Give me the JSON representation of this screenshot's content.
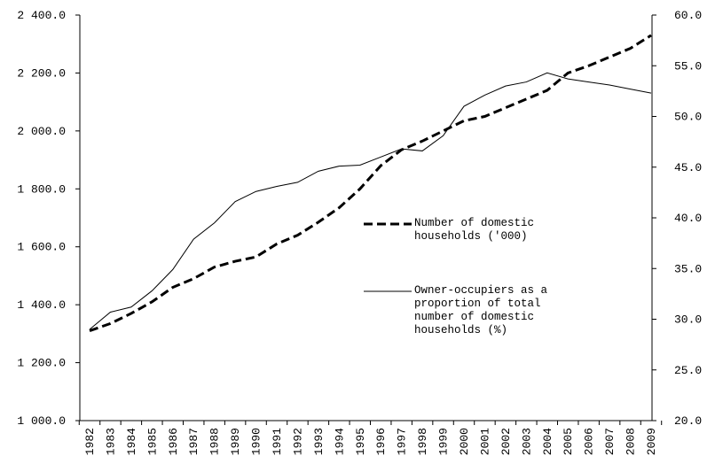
{
  "chart_data": {
    "type": "line",
    "categories": [
      "1982",
      "1983",
      "1984",
      "1985",
      "1986",
      "1987",
      "1988",
      "1989",
      "1990",
      "1991",
      "1992",
      "1993",
      "1994",
      "1995",
      "1996",
      "1997",
      "1998",
      "1999",
      "2000",
      "2001",
      "2002",
      "2003",
      "2004",
      "2005",
      "2006",
      "2007",
      "2008",
      "2009"
    ],
    "series": [
      {
        "name": "Number of domestic households ('000)",
        "color": "#000000",
        "dash": true,
        "axis": "y",
        "values": [
          1310,
          1335,
          1370,
          1410,
          1460,
          1490,
          1530,
          1550,
          1565,
          1610,
          1640,
          1685,
          1735,
          1800,
          1880,
          1935,
          1965,
          2000,
          2035,
          2050,
          2080,
          2110,
          2140,
          2200,
          2225,
          2255,
          2285,
          2330
        ]
      },
      {
        "name": "Owner-occupiers as a proportion of total number of domestic households (%)",
        "color": "#000000",
        "dash": false,
        "axis": "y2",
        "values": [
          29.0,
          30.7,
          31.2,
          32.8,
          34.9,
          37.9,
          39.5,
          41.6,
          42.6,
          43.1,
          43.5,
          44.6,
          45.1,
          45.2,
          46.0,
          46.8,
          46.6,
          48.1,
          51.0,
          52.1,
          53.0,
          53.4,
          54.3,
          53.7,
          53.4,
          53.1,
          52.7,
          52.3
        ]
      }
    ],
    "ylim": [
      1000,
      2400
    ],
    "yticks": [
      {
        "value": 1000,
        "label": "1 000.0"
      },
      {
        "value": 1200,
        "label": "1 200.0"
      },
      {
        "value": 1400,
        "label": "1 400.0"
      },
      {
        "value": 1600,
        "label": "1 600.0"
      },
      {
        "value": 1800,
        "label": "1 800.0"
      },
      {
        "value": 2000,
        "label": "2 000.0"
      },
      {
        "value": 2200,
        "label": "2 200.0"
      },
      {
        "value": 2400,
        "label": "2 400.0"
      }
    ],
    "y2lim": [
      20,
      60
    ],
    "y2ticks": [
      {
        "value": 20,
        "label": "20.0"
      },
      {
        "value": 25,
        "label": "25.0"
      },
      {
        "value": 30,
        "label": "30.0"
      },
      {
        "value": 35,
        "label": "35.0"
      },
      {
        "value": 40,
        "label": "40.0"
      },
      {
        "value": 45,
        "label": "45.0"
      },
      {
        "value": 50,
        "label": "50.0"
      },
      {
        "value": 55,
        "label": "55.0"
      },
      {
        "value": 60,
        "label": "60.0"
      }
    ]
  }
}
